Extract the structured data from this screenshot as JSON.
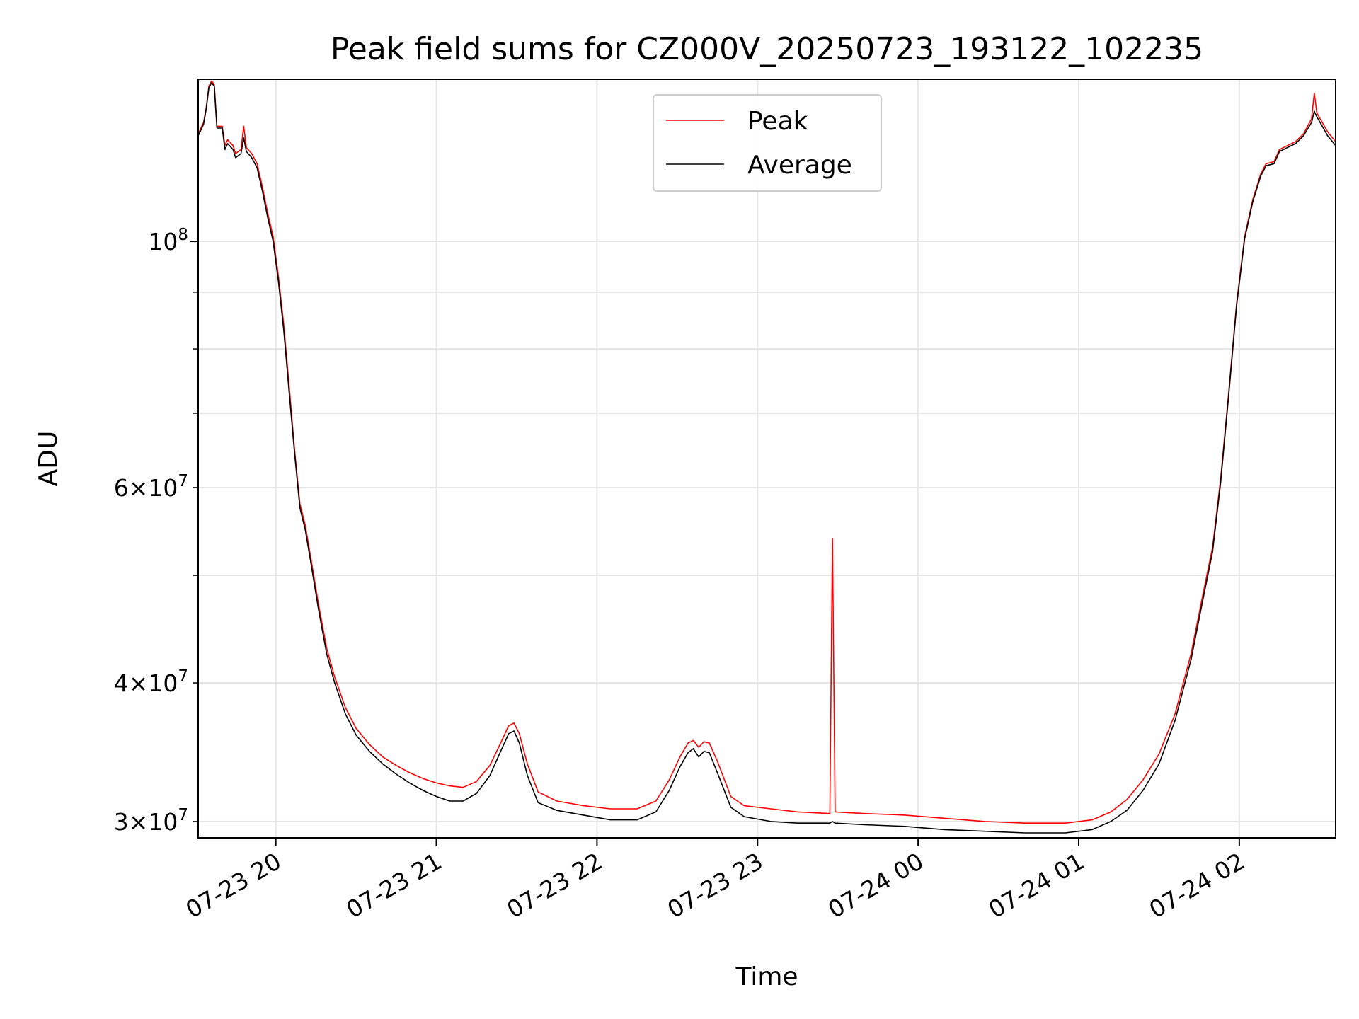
{
  "chart_data": {
    "type": "line",
    "title": "Peak field sums for CZ000V_20250723_193122_102235",
    "xlabel": "Time",
    "ylabel": "ADU",
    "y_scale": "log",
    "ylim": [
      29000000,
      140000000
    ],
    "xlim": [
      "2025-07-23 19:31",
      "2025-07-24 02:36"
    ],
    "grid": true,
    "legend_position": "upper center",
    "x_ticks": [
      {
        "t": "2025-07-23 20:00",
        "label": "07-23 20"
      },
      {
        "t": "2025-07-23 21:00",
        "label": "07-23 21"
      },
      {
        "t": "2025-07-23 22:00",
        "label": "07-23 22"
      },
      {
        "t": "2025-07-23 23:00",
        "label": "07-23 23"
      },
      {
        "t": "2025-07-24 00:00",
        "label": "07-24 00"
      },
      {
        "t": "2025-07-24 01:00",
        "label": "07-24 01"
      },
      {
        "t": "2025-07-24 02:00",
        "label": "07-24 02"
      }
    ],
    "y_ticks_major": [
      {
        "v": 100000000,
        "base": "10",
        "exp": "8"
      }
    ],
    "y_ticks_minor_labeled": [
      {
        "v": 30000000,
        "mant": "3",
        "base": "10",
        "exp": "7"
      },
      {
        "v": 40000000,
        "mant": "4",
        "base": "10",
        "exp": "7"
      },
      {
        "v": 60000000,
        "mant": "6",
        "base": "10",
        "exp": "7"
      }
    ],
    "y_ticks_minor": [
      50000000,
      70000000,
      80000000,
      90000000
    ],
    "series": [
      {
        "name": "Peak",
        "color": "#ff0000",
        "points": [
          [
            "2025-07-23 19:31",
            125000000
          ],
          [
            "2025-07-23 19:33",
            128000000
          ],
          [
            "2025-07-23 19:34",
            132000000
          ],
          [
            "2025-07-23 19:35",
            138000000
          ],
          [
            "2025-07-23 19:36",
            139500000
          ],
          [
            "2025-07-23 19:37",
            138500000
          ],
          [
            "2025-07-23 19:38",
            127000000
          ],
          [
            "2025-07-23 19:40",
            127000000
          ],
          [
            "2025-07-23 19:41",
            122000000
          ],
          [
            "2025-07-23 19:42",
            123500000
          ],
          [
            "2025-07-23 19:44",
            122000000
          ],
          [
            "2025-07-23 19:45",
            120000000
          ],
          [
            "2025-07-23 19:47",
            121000000
          ],
          [
            "2025-07-23 19:48",
            127000000
          ],
          [
            "2025-07-23 19:49",
            121500000
          ],
          [
            "2025-07-23 19:51",
            120000000
          ],
          [
            "2025-07-23 19:53",
            117500000
          ],
          [
            "2025-07-23 19:55",
            112000000
          ],
          [
            "2025-07-23 19:57",
            106000000
          ],
          [
            "2025-07-23 19:59",
            101000000
          ],
          [
            "2025-07-23 20:01",
            93000000
          ],
          [
            "2025-07-23 20:03",
            84000000
          ],
          [
            "2025-07-23 20:05",
            74000000
          ],
          [
            "2025-07-23 20:07",
            65000000
          ],
          [
            "2025-07-23 20:09",
            58000000
          ],
          [
            "2025-07-23 20:11",
            55500000
          ],
          [
            "2025-07-23 20:13",
            52000000
          ],
          [
            "2025-07-23 20:16",
            47000000
          ],
          [
            "2025-07-23 20:19",
            43000000
          ],
          [
            "2025-07-23 20:22",
            40500000
          ],
          [
            "2025-07-23 20:26",
            38000000
          ],
          [
            "2025-07-23 20:30",
            36400000
          ],
          [
            "2025-07-23 20:35",
            35200000
          ],
          [
            "2025-07-23 20:40",
            34300000
          ],
          [
            "2025-07-23 20:45",
            33700000
          ],
          [
            "2025-07-23 20:50",
            33200000
          ],
          [
            "2025-07-23 20:55",
            32800000
          ],
          [
            "2025-07-23 21:00",
            32500000
          ],
          [
            "2025-07-23 21:05",
            32300000
          ],
          [
            "2025-07-23 21:10",
            32200000
          ],
          [
            "2025-07-23 21:15",
            32600000
          ],
          [
            "2025-07-23 21:20",
            33700000
          ],
          [
            "2025-07-23 21:24",
            35300000
          ],
          [
            "2025-07-23 21:27",
            36600000
          ],
          [
            "2025-07-23 21:29",
            36800000
          ],
          [
            "2025-07-23 21:31",
            36000000
          ],
          [
            "2025-07-23 21:34",
            33800000
          ],
          [
            "2025-07-23 21:38",
            31900000
          ],
          [
            "2025-07-23 21:45",
            31300000
          ],
          [
            "2025-07-23 21:55",
            31000000
          ],
          [
            "2025-07-23 22:05",
            30800000
          ],
          [
            "2025-07-23 22:15",
            30800000
          ],
          [
            "2025-07-23 22:22",
            31300000
          ],
          [
            "2025-07-23 22:27",
            32700000
          ],
          [
            "2025-07-23 22:31",
            34300000
          ],
          [
            "2025-07-23 22:34",
            35300000
          ],
          [
            "2025-07-23 22:36",
            35500000
          ],
          [
            "2025-07-23 22:38",
            35000000
          ],
          [
            "2025-07-23 22:40",
            35400000
          ],
          [
            "2025-07-23 22:42",
            35300000
          ],
          [
            "2025-07-23 22:45",
            34000000
          ],
          [
            "2025-07-23 22:50",
            31600000
          ],
          [
            "2025-07-23 22:55",
            31000000
          ],
          [
            "2025-07-23 23:05",
            30800000
          ],
          [
            "2025-07-23 23:15",
            30600000
          ],
          [
            "2025-07-23 23:27",
            30500000
          ],
          [
            "2025-07-23 23:28",
            54000000
          ],
          [
            "2025-07-23 23:29",
            30600000
          ],
          [
            "2025-07-23 23:40",
            30500000
          ],
          [
            "2025-07-23 23:55",
            30400000
          ],
          [
            "2025-07-24 00:10",
            30200000
          ],
          [
            "2025-07-24 00:25",
            30000000
          ],
          [
            "2025-07-24 00:40",
            29900000
          ],
          [
            "2025-07-24 00:55",
            29900000
          ],
          [
            "2025-07-24 01:05",
            30100000
          ],
          [
            "2025-07-24 01:12",
            30600000
          ],
          [
            "2025-07-24 01:18",
            31400000
          ],
          [
            "2025-07-24 01:24",
            32700000
          ],
          [
            "2025-07-24 01:30",
            34500000
          ],
          [
            "2025-07-24 01:36",
            37500000
          ],
          [
            "2025-07-24 01:42",
            42500000
          ],
          [
            "2025-07-24 01:46",
            47500000
          ],
          [
            "2025-07-24 01:50",
            53000000
          ],
          [
            "2025-07-24 01:53",
            61000000
          ],
          [
            "2025-07-24 01:56",
            73000000
          ],
          [
            "2025-07-24 01:59",
            88000000
          ],
          [
            "2025-07-24 02:02",
            101000000
          ],
          [
            "2025-07-24 02:05",
            109000000
          ],
          [
            "2025-07-24 02:08",
            115000000
          ],
          [
            "2025-07-24 02:10",
            117500000
          ],
          [
            "2025-07-24 02:13",
            118000000
          ],
          [
            "2025-07-24 02:15",
            121000000
          ],
          [
            "2025-07-24 02:18",
            122000000
          ],
          [
            "2025-07-24 02:21",
            123000000
          ],
          [
            "2025-07-24 02:24",
            125000000
          ],
          [
            "2025-07-24 02:27",
            129000000
          ],
          [
            "2025-07-24 02:28",
            136000000
          ],
          [
            "2025-07-24 02:29",
            130500000
          ],
          [
            "2025-07-24 02:31",
            128000000
          ],
          [
            "2025-07-24 02:33",
            125500000
          ],
          [
            "2025-07-24 02:36",
            123000000
          ]
        ]
      },
      {
        "name": "Average",
        "color": "#000000",
        "points": [
          [
            "2025-07-23 19:31",
            124500000
          ],
          [
            "2025-07-23 19:33",
            127500000
          ],
          [
            "2025-07-23 19:34",
            131500000
          ],
          [
            "2025-07-23 19:35",
            137500000
          ],
          [
            "2025-07-23 19:36",
            139000000
          ],
          [
            "2025-07-23 19:37",
            138000000
          ],
          [
            "2025-07-23 19:38",
            126500000
          ],
          [
            "2025-07-23 19:40",
            126500000
          ],
          [
            "2025-07-23 19:41",
            121000000
          ],
          [
            "2025-07-23 19:42",
            122500000
          ],
          [
            "2025-07-23 19:44",
            121000000
          ],
          [
            "2025-07-23 19:45",
            119000000
          ],
          [
            "2025-07-23 19:47",
            120000000
          ],
          [
            "2025-07-23 19:48",
            124000000
          ],
          [
            "2025-07-23 19:49",
            120500000
          ],
          [
            "2025-07-23 19:51",
            119000000
          ],
          [
            "2025-07-23 19:53",
            116500000
          ],
          [
            "2025-07-23 19:55",
            111000000
          ],
          [
            "2025-07-23 19:57",
            105000000
          ],
          [
            "2025-07-23 19:59",
            100000000
          ],
          [
            "2025-07-23 20:01",
            92000000
          ],
          [
            "2025-07-23 20:03",
            83000000
          ],
          [
            "2025-07-23 20:05",
            73000000
          ],
          [
            "2025-07-23 20:07",
            64500000
          ],
          [
            "2025-07-23 20:09",
            57500000
          ],
          [
            "2025-07-23 20:11",
            55000000
          ],
          [
            "2025-07-23 20:13",
            51500000
          ],
          [
            "2025-07-23 20:16",
            46500000
          ],
          [
            "2025-07-23 20:19",
            42500000
          ],
          [
            "2025-07-23 20:22",
            40000000
          ],
          [
            "2025-07-23 20:26",
            37500000
          ],
          [
            "2025-07-23 20:30",
            35900000
          ],
          [
            "2025-07-23 20:35",
            34700000
          ],
          [
            "2025-07-23 20:40",
            33800000
          ],
          [
            "2025-07-23 20:45",
            33100000
          ],
          [
            "2025-07-23 20:50",
            32500000
          ],
          [
            "2025-07-23 20:55",
            32000000
          ],
          [
            "2025-07-23 21:00",
            31600000
          ],
          [
            "2025-07-23 21:05",
            31300000
          ],
          [
            "2025-07-23 21:10",
            31300000
          ],
          [
            "2025-07-23 21:15",
            31800000
          ],
          [
            "2025-07-23 21:20",
            33000000
          ],
          [
            "2025-07-23 21:24",
            34700000
          ],
          [
            "2025-07-23 21:27",
            36000000
          ],
          [
            "2025-07-23 21:29",
            36200000
          ],
          [
            "2025-07-23 21:31",
            35300000
          ],
          [
            "2025-07-23 21:34",
            33000000
          ],
          [
            "2025-07-23 21:38",
            31200000
          ],
          [
            "2025-07-23 21:45",
            30700000
          ],
          [
            "2025-07-23 21:55",
            30400000
          ],
          [
            "2025-07-23 22:05",
            30100000
          ],
          [
            "2025-07-23 22:15",
            30100000
          ],
          [
            "2025-07-23 22:22",
            30600000
          ],
          [
            "2025-07-23 22:27",
            32000000
          ],
          [
            "2025-07-23 22:31",
            33600000
          ],
          [
            "2025-07-23 22:34",
            34600000
          ],
          [
            "2025-07-23 22:36",
            34900000
          ],
          [
            "2025-07-23 22:38",
            34300000
          ],
          [
            "2025-07-23 22:40",
            34700000
          ],
          [
            "2025-07-23 22:42",
            34600000
          ],
          [
            "2025-07-23 22:45",
            33200000
          ],
          [
            "2025-07-23 22:50",
            30900000
          ],
          [
            "2025-07-23 22:55",
            30300000
          ],
          [
            "2025-07-23 23:05",
            30000000
          ],
          [
            "2025-07-23 23:15",
            29900000
          ],
          [
            "2025-07-23 23:27",
            29900000
          ],
          [
            "2025-07-23 23:28",
            30000000
          ],
          [
            "2025-07-23 23:29",
            29900000
          ],
          [
            "2025-07-23 23:40",
            29800000
          ],
          [
            "2025-07-23 23:55",
            29700000
          ],
          [
            "2025-07-24 00:10",
            29500000
          ],
          [
            "2025-07-24 00:25",
            29400000
          ],
          [
            "2025-07-24 00:40",
            29300000
          ],
          [
            "2025-07-24 00:55",
            29300000
          ],
          [
            "2025-07-24 01:05",
            29500000
          ],
          [
            "2025-07-24 01:12",
            30000000
          ],
          [
            "2025-07-24 01:18",
            30700000
          ],
          [
            "2025-07-24 01:24",
            32000000
          ],
          [
            "2025-07-24 01:30",
            33800000
          ],
          [
            "2025-07-24 01:36",
            37000000
          ],
          [
            "2025-07-24 01:42",
            42000000
          ],
          [
            "2025-07-24 01:46",
            47000000
          ],
          [
            "2025-07-24 01:50",
            52500000
          ],
          [
            "2025-07-24 01:53",
            60500000
          ],
          [
            "2025-07-24 01:56",
            72500000
          ],
          [
            "2025-07-24 01:59",
            87500000
          ],
          [
            "2025-07-24 02:02",
            100500000
          ],
          [
            "2025-07-24 02:05",
            108500000
          ],
          [
            "2025-07-24 02:08",
            114500000
          ],
          [
            "2025-07-24 02:10",
            117000000
          ],
          [
            "2025-07-24 02:13",
            117500000
          ],
          [
            "2025-07-24 02:15",
            120500000
          ],
          [
            "2025-07-24 02:18",
            121500000
          ],
          [
            "2025-07-24 02:21",
            122500000
          ],
          [
            "2025-07-24 02:24",
            124500000
          ],
          [
            "2025-07-24 02:27",
            128000000
          ],
          [
            "2025-07-24 02:28",
            131000000
          ],
          [
            "2025-07-24 02:29",
            129500000
          ],
          [
            "2025-07-24 02:31",
            127000000
          ],
          [
            "2025-07-24 02:33",
            124500000
          ],
          [
            "2025-07-24 02:36",
            122000000
          ]
        ]
      }
    ]
  }
}
